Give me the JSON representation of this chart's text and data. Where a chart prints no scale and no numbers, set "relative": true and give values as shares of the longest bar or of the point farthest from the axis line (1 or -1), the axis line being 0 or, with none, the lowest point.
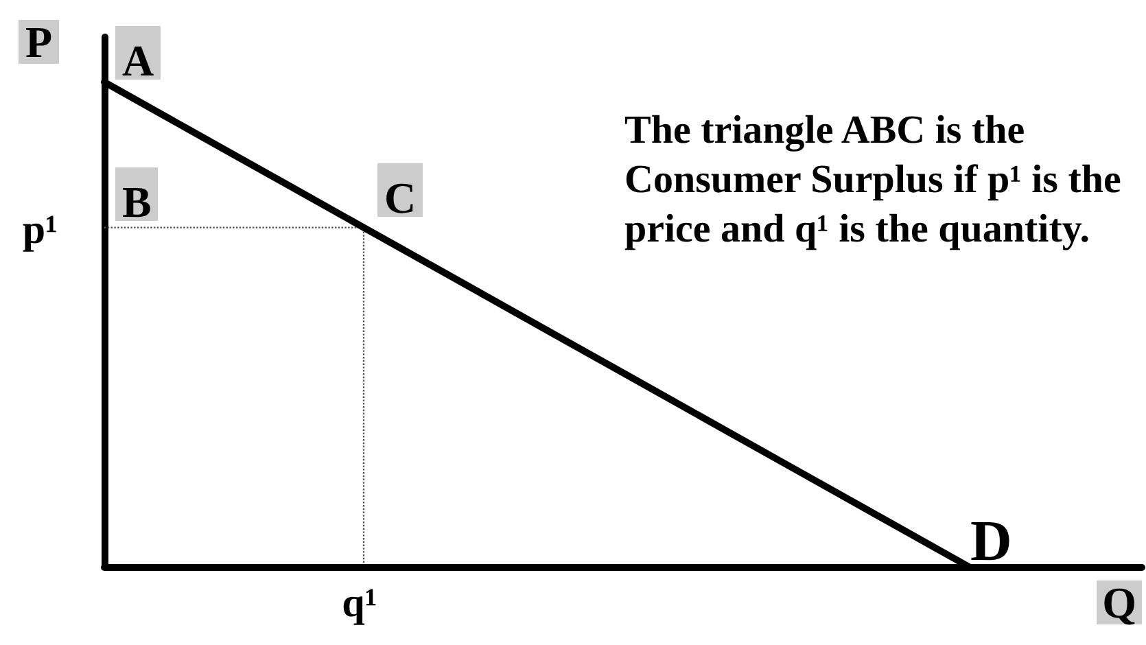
{
  "chart_data": {
    "type": "line",
    "relative": true,
    "marker": "none",
    "line_style": "solid",
    "xlabel": "Q",
    "ylabel": "P",
    "categories": [
      null,
      null,
      null,
      null,
      null,
      null,
      null,
      null,
      null,
      null,
      null
    ],
    "series": [
      {
        "color": "#000000",
        "values": [
          1,
          0.9,
          0.8,
          0.7,
          0.6,
          0.5,
          0.4,
          0.3,
          0.2,
          0.1,
          0
        ]
      },
      {
        "type": "step",
        "color": "#555555",
        "line_style": "dotted",
        "values": [
          0.7,
          0.7,
          0.7,
          0.7,
          0,
          null,
          null,
          null,
          null,
          null,
          null
        ]
      }
    ],
    "annotations": [
      "The triangle ABC is the Consumer Surplus if p¹ is the price and q¹ is the quantity.",
      "A",
      {
        "text": "B",
        "y": 0.7
      },
      "C",
      "D",
      "p¹",
      {
        "text": "q¹",
        "y": 0
      }
    ]
  }
}
